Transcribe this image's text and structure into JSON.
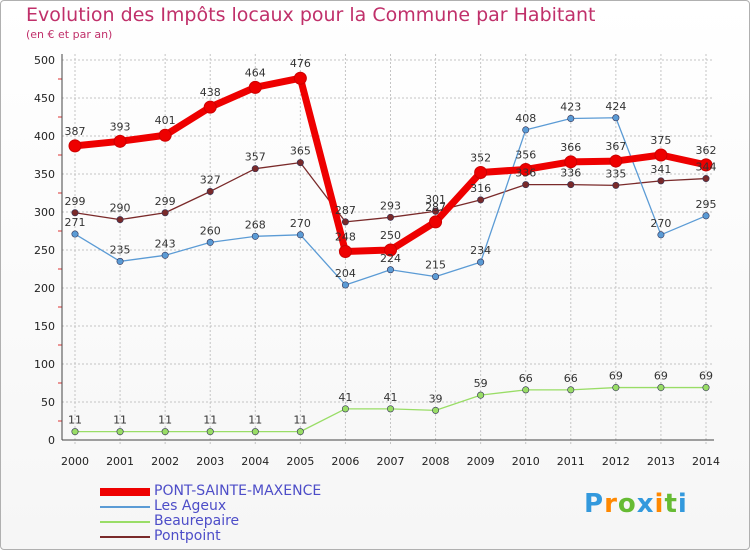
{
  "chart_data": {
    "type": "line",
    "title": "Evolution des Impôts locaux pour la Commune par Habitant",
    "subtitle": "(en € et par an)",
    "xlabel": "",
    "ylabel": "",
    "ylim": [
      0,
      500
    ],
    "yticks": [
      0,
      50,
      100,
      150,
      200,
      250,
      300,
      350,
      400,
      450,
      500
    ],
    "x": [
      "2000",
      "2001",
      "2002",
      "2003",
      "2004",
      "2005",
      "2006",
      "2007",
      "2008",
      "2009",
      "2010",
      "2011",
      "2012",
      "2013",
      "2014"
    ],
    "grid": true,
    "legend_position": "bottom-left",
    "series": [
      {
        "name": "PONT-SAINTE-MAXENCE",
        "color": "#ee0000",
        "values": [
          387,
          393,
          401,
          438,
          464,
          476,
          248,
          250,
          287,
          352,
          356,
          366,
          367,
          375,
          362
        ]
      },
      {
        "name": "Les Ageux",
        "color": "#5b9bd5",
        "values": [
          271,
          235,
          243,
          260,
          268,
          270,
          204,
          224,
          215,
          234,
          408,
          423,
          424,
          270,
          295
        ]
      },
      {
        "name": "Beaurepaire",
        "color": "#99dd66",
        "values": [
          11,
          11,
          11,
          11,
          11,
          11,
          41,
          41,
          39,
          59,
          66,
          66,
          69,
          69,
          69
        ]
      },
      {
        "name": "Pontpoint",
        "color": "#7a2a2a",
        "values": [
          299,
          290,
          299,
          327,
          357,
          365,
          287,
          293,
          301,
          316,
          336,
          336,
          335,
          341,
          344
        ]
      }
    ]
  },
  "logo": {
    "text": "Proxiti",
    "letters": [
      "P",
      "r",
      "o",
      "x",
      "i",
      "t",
      "i"
    ],
    "colors": [
      "#3399dd",
      "#ff8800",
      "#66bb33",
      "#3399dd",
      "#ff8800",
      "#66bb33",
      "#3399dd"
    ]
  }
}
